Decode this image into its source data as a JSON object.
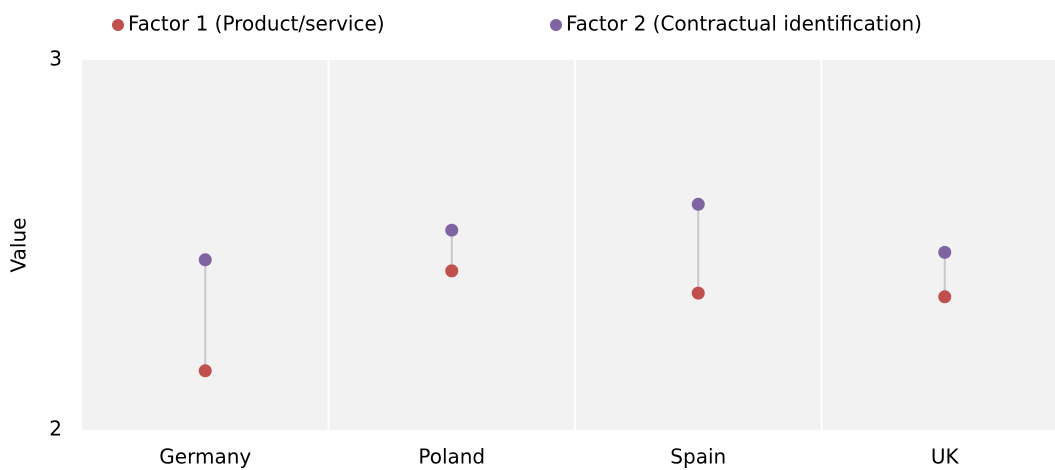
{
  "chart_data": {
    "type": "dumbbell",
    "y_label": "Value",
    "categories": [
      "Germany",
      "Poland",
      "Spain",
      "UK"
    ],
    "series": [
      {
        "name": "Factor 1 (Product/service)",
        "color": "#c0504d",
        "values": [
          2.16,
          2.43,
          2.37,
          2.36
        ]
      },
      {
        "name": "Factor 2 (Contractual identification)",
        "color": "#8064a2",
        "values": [
          2.46,
          2.54,
          2.61,
          2.48
        ]
      }
    ],
    "ylim": [
      2,
      3
    ],
    "yticks": [
      2,
      3
    ],
    "legend": "top"
  }
}
